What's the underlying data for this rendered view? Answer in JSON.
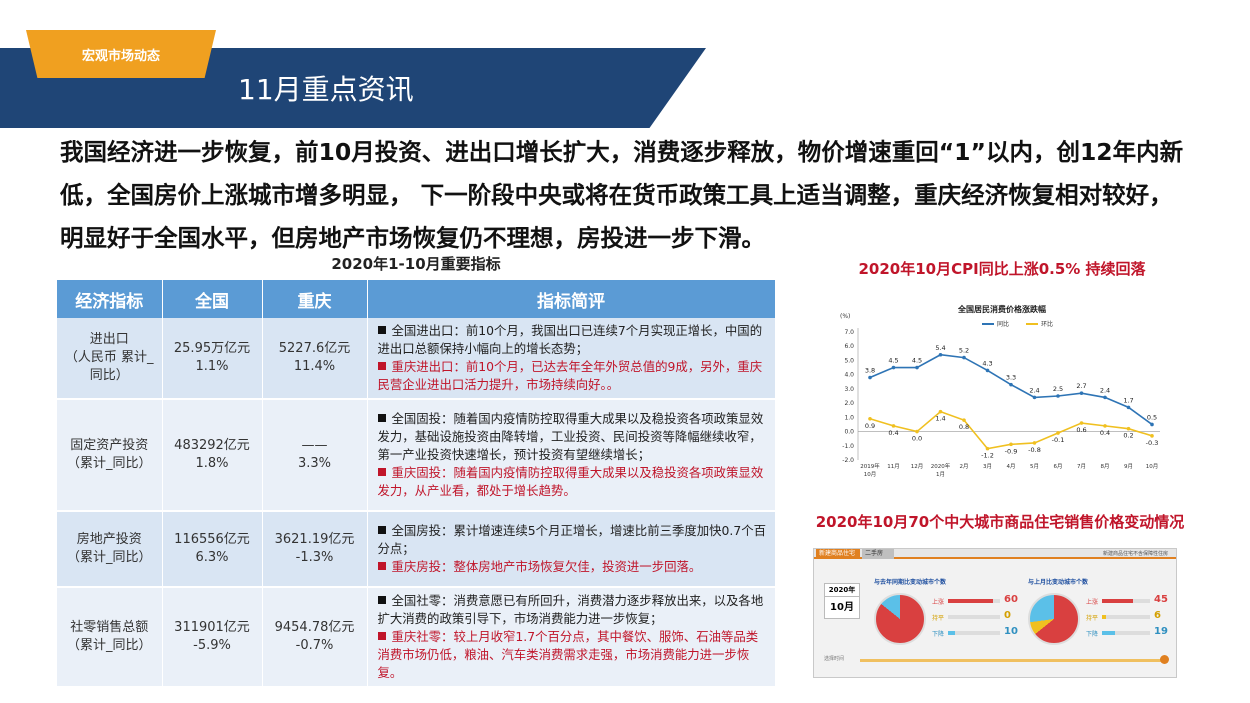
{
  "header": {
    "tag": "宏观市场动态",
    "title": "11月重点资讯"
  },
  "headline": "我国经济进一步恢复，前10月投资、进出口增长扩大，消费逐步释放，物价增速重回“1”以内，创12年内新低，全国房价上涨城市增多明显， 下一阶段中央或将在货币政策工具上适当调整，重庆经济恢复相对较好，明显好于全国水平，但房地产市场恢复仍不理想，房投进一步下滑。",
  "table": {
    "caption": "2020年1-10月重要指标",
    "headers": [
      "经济指标",
      "全国",
      "重庆",
      "指标简评"
    ],
    "rows": [
      {
        "indicator": "进出口\n（人民币 累计_同比）",
        "national": "25.95万亿元\n1.1%",
        "chongqing": "5227.6亿元\n11.4%",
        "national_comment": "全国进出口：前10个月，我国出口已连续7个月实现正增长，中国的进出口总额保持小幅向上的增长态势；",
        "cq_comment": "重庆进出口：前10个月，已达去年全年外贸总值的9成，另外，重庆民营企业进出口活力提升，市场持续向好。。"
      },
      {
        "indicator": "固定资产投资\n（累计_同比）",
        "national": "483292亿元\n1.8%",
        "chongqing": "——\n3.3%",
        "national_comment": "全国固投：随着国内疫情防控取得重大成果以及稳投资各项政策显效发力，基础设施投资由降转增，工业投资、民间投资等降幅继续收窄，第一产业投资快速增长，预计投资有望继续增长；",
        "cq_comment": "重庆固投：随着国内疫情防控取得重大成果以及稳投资各项政策显效发力，从产业看，都处于增长趋势。"
      },
      {
        "indicator": "房地产投资\n（累计_同比）",
        "national": "116556亿元\n6.3%",
        "chongqing": "3621.19亿元\n-1.3%",
        "national_comment": "全国房投：累计增速连续5个月正增长，增速比前三季度加快0.7个百分点；",
        "cq_comment": "重庆房投：整体房地产市场恢复欠佳，投资进一步回落。"
      },
      {
        "indicator": "社零销售总额\n（累计_同比）",
        "national": "311901亿元\n-5.9%",
        "chongqing": "9454.78亿元\n-0.7%",
        "national_comment": "全国社零：消费意愿已有所回升，消费潜力逐步释放出来，以及各地扩大消费的政策引导下，市场消费能力进一步恢复；",
        "cq_comment": "重庆社零：较上月收窄1.7个百分点，其中餐饮、服饰、石油等品类消费市场仍低，粮油、汽车类消费需求走强，市场消费能力进一步恢复。"
      }
    ]
  },
  "cpi_panel": {
    "heading": "2020年10月CPI同比上涨0.5% 持续回落",
    "chart_data": {
      "type": "line",
      "title": "全国居民消费价格涨跌幅",
      "ylabel": "(%)",
      "ylim": [
        -2.0,
        7.0
      ],
      "yticks": [
        "7.0",
        "6.0",
        "5.0",
        "4.0",
        "3.0",
        "2.0",
        "1.0",
        "0.0",
        "-1.0",
        "-2.0"
      ],
      "categories": [
        "2019年\n10月",
        "11月",
        "12月",
        "2020年\n1月",
        "2月",
        "3月",
        "4月",
        "5月",
        "6月",
        "7月",
        "8月",
        "9月",
        "10月"
      ],
      "series": [
        {
          "name": "同比",
          "color": "#2e74b5",
          "values": [
            3.8,
            4.5,
            4.5,
            5.4,
            5.2,
            4.3,
            3.3,
            2.4,
            2.5,
            2.7,
            2.4,
            1.7,
            0.5
          ]
        },
        {
          "name": "环比",
          "color": "#f0c020",
          "values": [
            0.9,
            0.4,
            0.0,
            1.4,
            0.8,
            -1.2,
            -0.9,
            -0.8,
            -0.1,
            0.6,
            0.4,
            0.2,
            -0.3
          ]
        }
      ]
    }
  },
  "housing_panel": {
    "heading": "2020年10月70个中大城市商品住宅销售价格变动情况",
    "tab_new": "新建商品住宅",
    "tab_used": "二手房",
    "note": "新建商品住宅不含保障性住房",
    "year": "2020年",
    "month": "10月",
    "timeline_label": "选择时间",
    "yoy": {
      "label": "与去年同期比变动城市个数",
      "up_label": "上涨",
      "flat_label": "持平",
      "down_label": "下降",
      "up": "60",
      "flat": "0",
      "down": "10"
    },
    "mom": {
      "label": "与上月比变动城市个数",
      "up_label": "上涨",
      "flat_label": "持平",
      "down_label": "下降",
      "up": "45",
      "flat": "6",
      "down": "19"
    },
    "colors": {
      "up": "#d94040",
      "flat": "#f0c020",
      "down": "#5bc0e8"
    }
  }
}
